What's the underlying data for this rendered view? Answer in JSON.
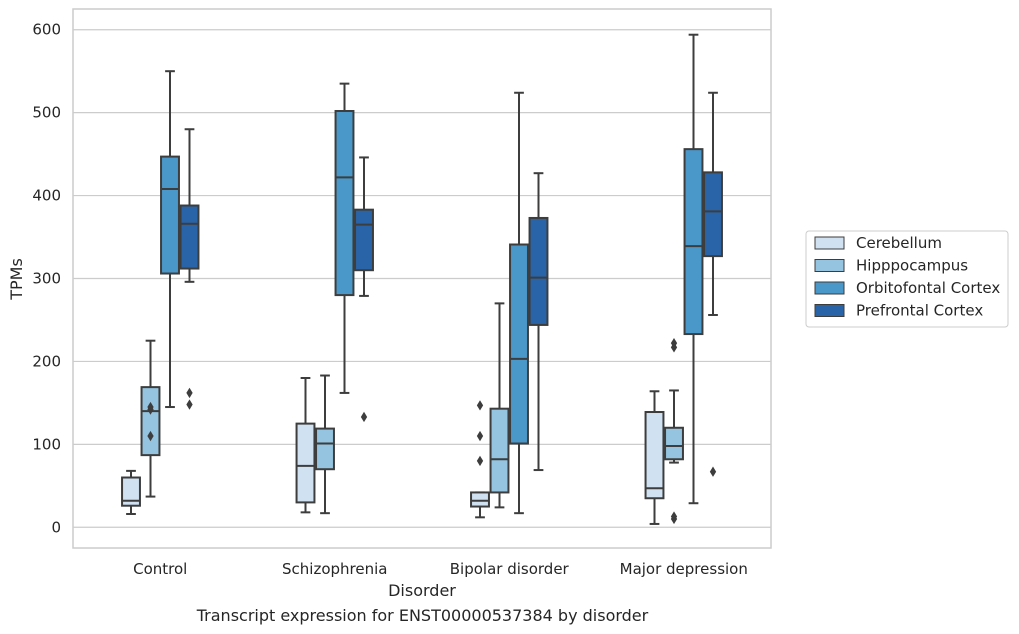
{
  "caption": "Transcript expression for ENST00000537384 by disorder",
  "chart_data": {
    "type": "box",
    "xlabel": "Disorder",
    "ylabel": "TPMs",
    "ylim": [
      -25,
      625
    ],
    "yticks": [
      0,
      100,
      200,
      300,
      400,
      500,
      600
    ],
    "grid": true,
    "legend_position": "right",
    "categories": [
      "Control",
      "Schizophrenia",
      "Bipolar disorder",
      "Major depression"
    ],
    "series": [
      {
        "name": "Cerebellum",
        "color": "#d0e1f2",
        "boxes": [
          {
            "whisker_low": 16,
            "q1": 26,
            "median": 32,
            "q3": 60,
            "whisker_high": 68,
            "outliers": []
          },
          {
            "whisker_low": 18,
            "q1": 30,
            "median": 74,
            "q3": 125,
            "whisker_high": 180,
            "outliers": []
          },
          {
            "whisker_low": 12,
            "q1": 25,
            "median": 32,
            "q3": 42,
            "whisker_high": 42,
            "outliers": [
              80,
              110,
              147
            ]
          },
          {
            "whisker_low": 4,
            "q1": 35,
            "median": 47,
            "q3": 139,
            "whisker_high": 164,
            "outliers": []
          }
        ]
      },
      {
        "name": "Hipppocampus",
        "color": "#94c4df",
        "boxes": [
          {
            "whisker_low": 37,
            "q1": 87,
            "median": 140,
            "q3": 169,
            "whisker_high": 225,
            "outliers": [
              110,
              142,
              145
            ]
          },
          {
            "whisker_low": 17,
            "q1": 70,
            "median": 101,
            "q3": 119,
            "whisker_high": 183,
            "outliers": []
          },
          {
            "whisker_low": 24,
            "q1": 42,
            "median": 82,
            "q3": 143,
            "whisker_high": 270,
            "outliers": []
          },
          {
            "whisker_low": 78,
            "q1": 82,
            "median": 98,
            "q3": 120,
            "whisker_high": 165,
            "outliers": [
              10,
              13,
              217,
              222
            ]
          }
        ]
      },
      {
        "name": "Orbitofontal Cortex",
        "color": "#4a98c9",
        "boxes": [
          {
            "whisker_low": 145,
            "q1": 306,
            "median": 408,
            "q3": 447,
            "whisker_high": 550,
            "outliers": []
          },
          {
            "whisker_low": 162,
            "q1": 280,
            "median": 422,
            "q3": 502,
            "whisker_high": 535,
            "outliers": []
          },
          {
            "whisker_low": 17,
            "q1": 101,
            "median": 203,
            "q3": 341,
            "whisker_high": 524,
            "outliers": []
          },
          {
            "whisker_low": 29,
            "q1": 233,
            "median": 339,
            "q3": 456,
            "whisker_high": 594,
            "outliers": []
          }
        ]
      },
      {
        "name": "Prefrontal Cortex",
        "color": "#2a64a8",
        "boxes": [
          {
            "whisker_low": 296,
            "q1": 312,
            "median": 366,
            "q3": 388,
            "whisker_high": 480,
            "outliers": [
              148,
              162
            ]
          },
          {
            "whisker_low": 279,
            "q1": 310,
            "median": 365,
            "q3": 383,
            "whisker_high": 446,
            "outliers": [
              133
            ]
          },
          {
            "whisker_low": 69,
            "q1": 244,
            "median": 301,
            "q3": 373,
            "whisker_high": 427,
            "outliers": []
          },
          {
            "whisker_low": 256,
            "q1": 327,
            "median": 381,
            "q3": 428,
            "whisker_high": 524,
            "outliers": [
              67
            ]
          }
        ]
      }
    ]
  }
}
